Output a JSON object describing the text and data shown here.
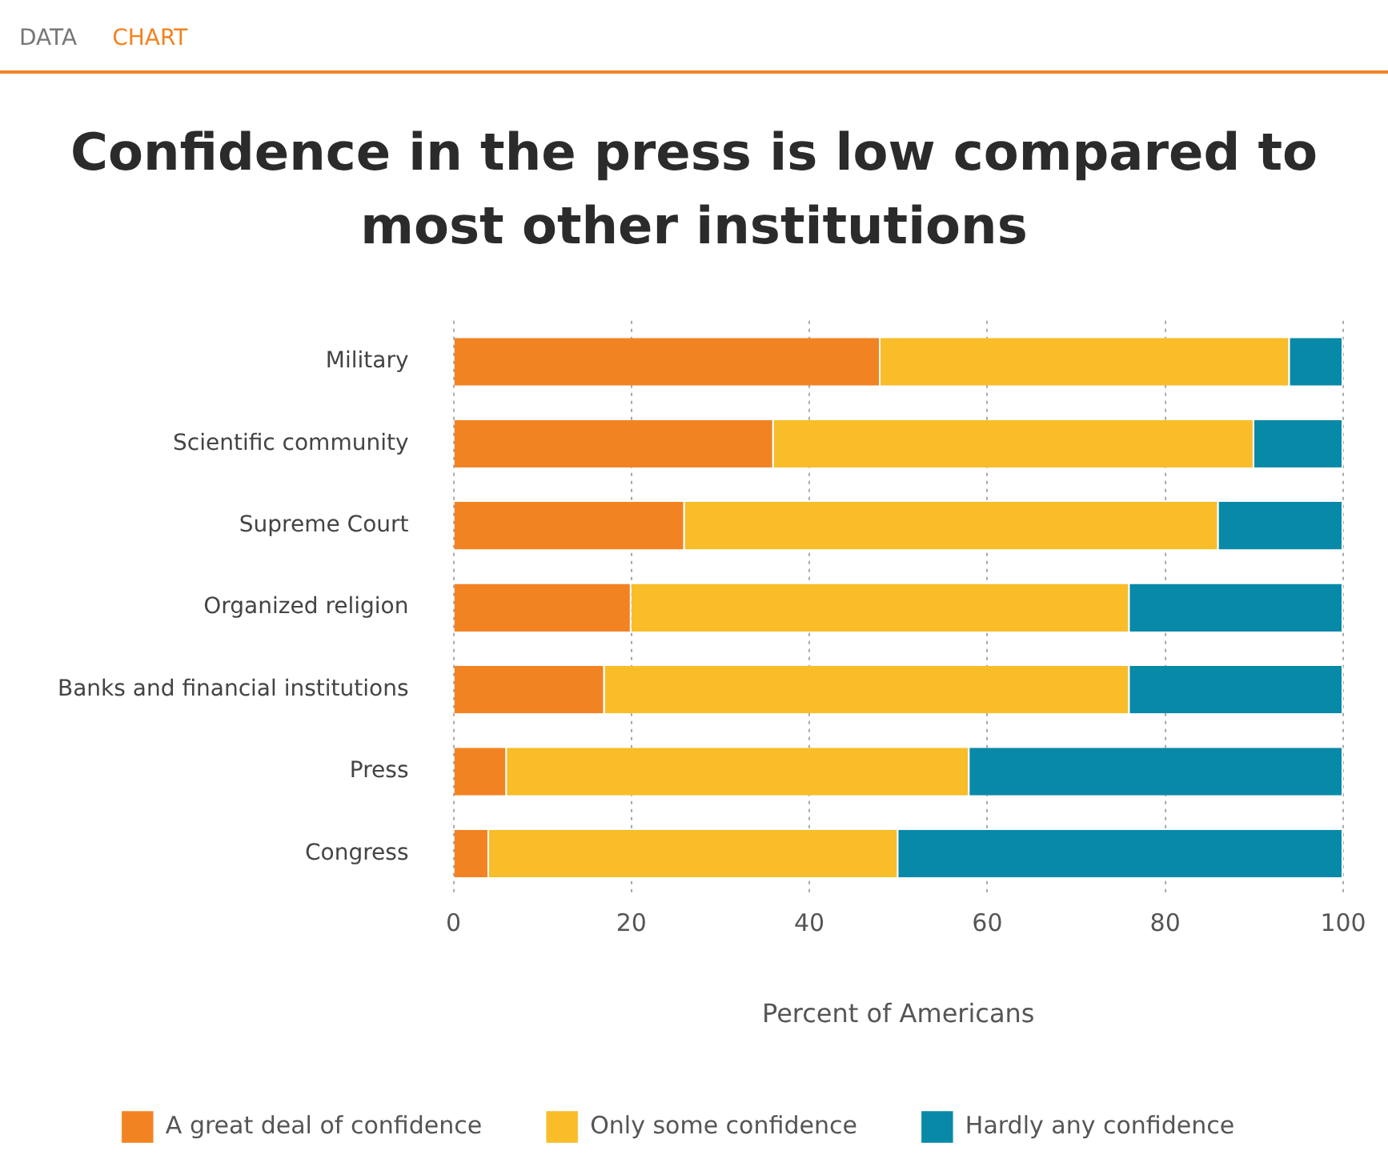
{
  "chart_data": {
    "type": "bar",
    "orientation": "horizontal",
    "stacked": true,
    "title": "Confidence in the press is low compared to most other institutions",
    "xlabel": "Percent of Americans",
    "annotations": [
      "DATA",
      "CHART"
    ],
    "categories": [
      "Military",
      "Scientific community",
      "Supreme Court",
      "Organized religion",
      "Banks and financial institutions",
      "Press",
      "Congress"
    ],
    "series": [
      {
        "name": "A great deal of confidence",
        "color": "#f28322",
        "values": [
          48,
          36,
          26,
          20,
          17,
          6,
          4
        ]
      },
      {
        "name": "Only some confidence",
        "color": "#f8bd28",
        "values": [
          46,
          54,
          60,
          56,
          59,
          52,
          46
        ]
      },
      {
        "name": "Hardly any confidence",
        "color": "#0889a8",
        "values": [
          6,
          10,
          14,
          24,
          24,
          42,
          50
        ]
      }
    ],
    "xlim": [
      0,
      100
    ],
    "xticks": [
      0,
      20,
      40,
      60,
      80,
      100
    ],
    "grid": "x",
    "legend": "bottom"
  }
}
